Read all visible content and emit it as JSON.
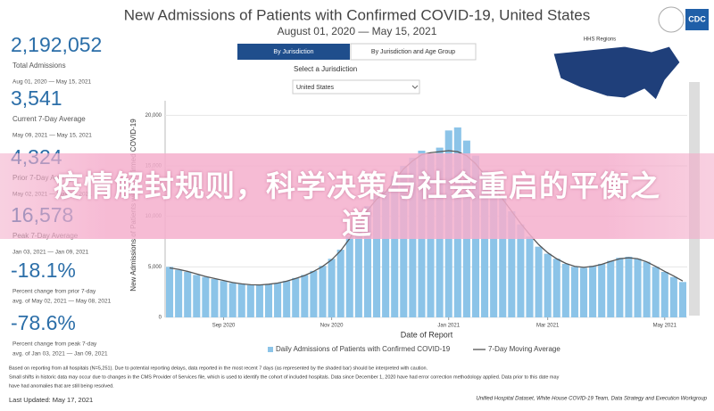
{
  "header": {
    "title": "New Admissions of Patients with Confirmed COVID-19, United States",
    "subtitle": "August 01, 2020 — May 15, 2021",
    "logo": "CDC",
    "map_title": "HHS Regions"
  },
  "controls": {
    "tabs": [
      "By Jurisdiction",
      "By Jurisdiction and Age Group"
    ],
    "select_label": "Select a Jurisdiction",
    "select_value": "United States"
  },
  "stats": [
    {
      "value": "2,192,052",
      "label": "Total Admissions",
      "range": "Aug 01, 2020 — May 15, 2021"
    },
    {
      "value": "3,541",
      "label": "Current 7-Day Average",
      "range": "May 09, 2021 — May 15, 2021"
    },
    {
      "value": "4,324",
      "label": "Prior 7-Day Average",
      "range": "May 02, 2021 — May 08, 2021"
    },
    {
      "value": "16,578",
      "label": "Peak 7-Day Average",
      "range": "Jan 03, 2021 — Jan 09, 2021"
    },
    {
      "value": "-18.1%",
      "label": "Percent change from prior 7-day",
      "range": "avg. of May 02, 2021 — May 08, 2021"
    },
    {
      "value": "-78.6%",
      "label": "Percent change from peak 7-day",
      "range": "avg. of Jan 03, 2021 — Jan 09, 2021"
    }
  ],
  "footer": {
    "notes": [
      "Based on reporting from all hospitals (N=5,251). Due to potential reporting delays, data reported in the most recent 7 days (as represented by the shaded bar) should be interpreted with caution.",
      "Small shifts in historic data may occur due to changes in the CMS Provider of Services file, which is used to identify the cohort of included hospitals. Data since December 1, 2020 have had error correction methodology applied. Data prior to this date may",
      "have had anomalies that are still being resolved."
    ],
    "updated": "Last Updated: May 17, 2021",
    "source": "Unified Hospital Dataset, White House COVID-19 Team, Data Strategy and Execution Workgroup"
  },
  "banner": "疫情解封规则，科学决策与社会重启的平衡之道",
  "chart_data": {
    "type": "bar_line",
    "x_label": "Date of Report",
    "y_label": "New Admissions of Patients with Confirmed COVID-19",
    "categories": [
      null,
      null,
      null,
      null,
      null,
      null,
      "Sep 2020",
      null,
      null,
      null,
      null,
      null,
      null,
      null,
      null,
      null,
      null,
      null,
      "Nov 2020",
      null,
      null,
      null,
      null,
      null,
      null,
      null,
      null,
      null,
      null,
      null,
      null,
      "Jan 2021",
      null,
      null,
      null,
      null,
      null,
      null,
      null,
      null,
      null,
      null,
      "Mar 2021",
      null,
      null,
      null,
      null,
      null,
      null,
      null,
      null,
      null,
      null,
      null,
      null,
      "May 2021",
      null,
      null
    ],
    "series": [
      {
        "name": "Daily Admissions of Patients with Confirmed COVID-19",
        "color": "#8cc4e8",
        "kind": "bar",
        "values": [
          5000,
          4700,
          4500,
          4200,
          4000,
          3800,
          3600,
          3400,
          3300,
          3200,
          3200,
          3300,
          3400,
          3600,
          3900,
          4200,
          4600,
          5100,
          5800,
          6700,
          8000,
          9500,
          11000,
          12000,
          12500,
          14000,
          15000,
          15800,
          16500,
          16200,
          16800,
          18500,
          18800,
          17500,
          16000,
          14500,
          13000,
          11800,
          10500,
          9200,
          8000,
          7000,
          6300,
          5800,
          5300,
          5000,
          4900,
          5100,
          5300,
          5600,
          5900,
          6000,
          5800,
          5500,
          5000,
          4500,
          4000,
          3500
        ]
      },
      {
        "name": "7-Day Moving Average",
        "color": "#555555",
        "kind": "line",
        "values": [
          4900,
          4750,
          4550,
          4300,
          4050,
          3850,
          3650,
          3450,
          3320,
          3230,
          3210,
          3280,
          3400,
          3580,
          3850,
          4150,
          4550,
          5050,
          5700,
          6600,
          7800,
          9200,
          10600,
          11700,
          12400,
          13600,
          14700,
          15500,
          16100,
          16300,
          16400,
          16500,
          16400,
          16000,
          15200,
          14100,
          12900,
          11700,
          10500,
          9300,
          8200,
          7200,
          6400,
          5800,
          5350,
          5050,
          4950,
          5050,
          5250,
          5550,
          5800,
          5900,
          5800,
          5500,
          5050,
          4550,
          4100,
          3600
        ]
      }
    ],
    "ylim": [
      0,
      21000
    ],
    "yticks": [
      0,
      {
        "value": 5000,
        "label": "5,000"
      },
      {
        "value": 10000,
        "label": "10,000"
      },
      {
        "value": 15000,
        "label": "15,000"
      },
      {
        "value": 20000,
        "label": "20,000"
      }
    ],
    "grid": true
  }
}
